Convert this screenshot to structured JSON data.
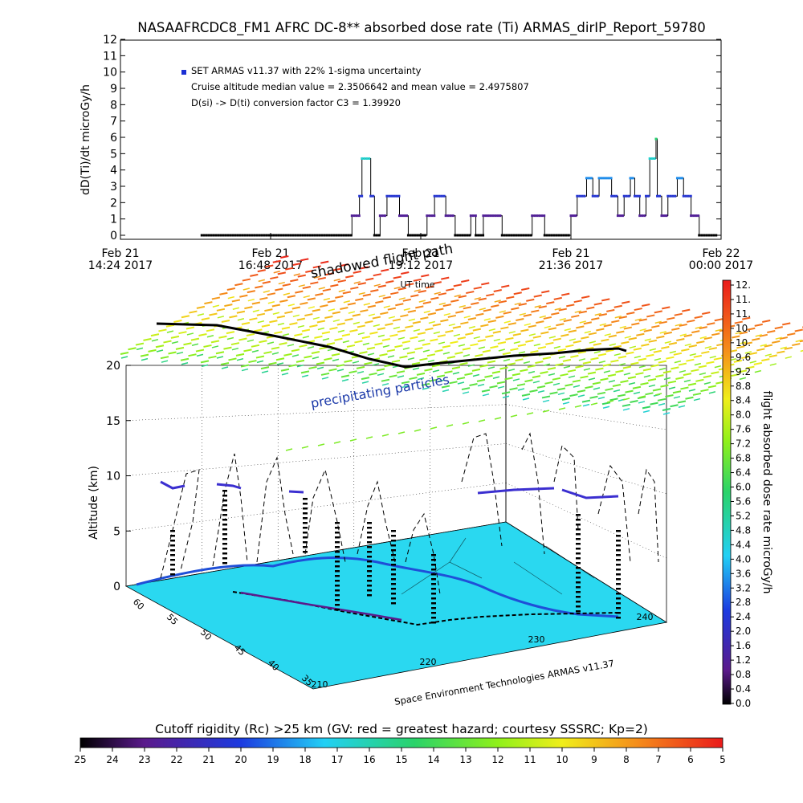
{
  "title": "NASAAFRCDC8_FM1 AFRC DC-8** absorbed dose rate (Ti) ARMAS_dirIP_Report_59780",
  "colors": {
    "background": "#ffffff",
    "foreground": "#000000"
  },
  "chart_data": [
    {
      "type": "scatter",
      "ylabel": "dD(Ti)/dt microGy/h",
      "ylim": [
        0,
        12
      ],
      "yticks": [
        "0",
        "1",
        "2",
        "3",
        "4",
        "5",
        "6",
        "7",
        "8",
        "9",
        "10",
        "11",
        "12"
      ],
      "xlabel": "UT time",
      "xlim_hours": [
        14.4,
        24.0
      ],
      "xticks": [
        {
          "date": "Feb 21",
          "time": "14:24 2017"
        },
        {
          "date": "Feb 21",
          "time": "16:48 2017"
        },
        {
          "date": "Feb 21",
          "time": "19:12 2017"
        },
        {
          "date": "Feb 21",
          "time": "21:36 2017"
        },
        {
          "date": "Feb 22",
          "time": "00:00 2017"
        }
      ],
      "legend": {
        "series": "SET ARMAS v11.37 with 22% 1-sigma uncertainty",
        "line2": "Cruise altitude median value = 2.3506642 and mean value = 2.4975807",
        "line3": "D(si) -> D(ti) conversion factor C3 = 1.39920",
        "placement": "top-left"
      },
      "segments": [
        {
          "x0": 15.7,
          "x1": 18.1,
          "y": 0.0
        },
        {
          "x0": 18.1,
          "x1": 18.22,
          "y": 1.2
        },
        {
          "x0": 18.22,
          "x1": 18.26,
          "y": 2.4
        },
        {
          "x0": 18.26,
          "x1": 18.4,
          "y": 4.7
        },
        {
          "x0": 18.4,
          "x1": 18.46,
          "y": 2.4
        },
        {
          "x0": 18.46,
          "x1": 18.55,
          "y": 0.0
        },
        {
          "x0": 18.55,
          "x1": 18.66,
          "y": 1.2
        },
        {
          "x0": 18.66,
          "x1": 18.86,
          "y": 2.4
        },
        {
          "x0": 18.86,
          "x1": 19.0,
          "y": 1.2
        },
        {
          "x0": 19.0,
          "x1": 19.3,
          "y": 0.0
        },
        {
          "x0": 19.3,
          "x1": 19.42,
          "y": 1.2
        },
        {
          "x0": 19.42,
          "x1": 19.6,
          "y": 2.4
        },
        {
          "x0": 19.6,
          "x1": 19.75,
          "y": 1.2
        },
        {
          "x0": 19.75,
          "x1": 20.0,
          "y": 0.0
        },
        {
          "x0": 20.0,
          "x1": 20.08,
          "y": 1.2
        },
        {
          "x0": 20.08,
          "x1": 20.2,
          "y": 0.0
        },
        {
          "x0": 20.2,
          "x1": 20.5,
          "y": 1.2
        },
        {
          "x0": 20.5,
          "x1": 20.98,
          "y": 0.0
        },
        {
          "x0": 20.98,
          "x1": 21.18,
          "y": 1.2
        },
        {
          "x0": 21.18,
          "x1": 21.6,
          "y": 0.0
        },
        {
          "x0": 21.6,
          "x1": 21.7,
          "y": 1.2
        },
        {
          "x0": 21.7,
          "x1": 21.85,
          "y": 2.4
        },
        {
          "x0": 21.85,
          "x1": 21.95,
          "y": 3.5
        },
        {
          "x0": 21.95,
          "x1": 22.05,
          "y": 2.4
        },
        {
          "x0": 22.05,
          "x1": 22.25,
          "y": 3.5
        },
        {
          "x0": 22.25,
          "x1": 22.35,
          "y": 2.4
        },
        {
          "x0": 22.35,
          "x1": 22.45,
          "y": 1.2
        },
        {
          "x0": 22.45,
          "x1": 22.55,
          "y": 2.4
        },
        {
          "x0": 22.55,
          "x1": 22.62,
          "y": 3.5
        },
        {
          "x0": 22.62,
          "x1": 22.7,
          "y": 2.4
        },
        {
          "x0": 22.7,
          "x1": 22.8,
          "y": 1.2
        },
        {
          "x0": 22.8,
          "x1": 22.86,
          "y": 2.4
        },
        {
          "x0": 22.86,
          "x1": 22.96,
          "y": 4.7
        },
        {
          "x0": 22.96,
          "x1": 22.98,
          "y": 5.9
        },
        {
          "x0": 22.98,
          "x1": 23.05,
          "y": 2.4
        },
        {
          "x0": 23.05,
          "x1": 23.15,
          "y": 1.2
        },
        {
          "x0": 23.15,
          "x1": 23.3,
          "y": 2.4
        },
        {
          "x0": 23.3,
          "x1": 23.4,
          "y": 3.5
        },
        {
          "x0": 23.4,
          "x1": 23.52,
          "y": 2.4
        },
        {
          "x0": 23.52,
          "x1": 23.65,
          "y": 1.2
        },
        {
          "x0": 23.65,
          "x1": 23.95,
          "y": 0.0
        }
      ]
    },
    {
      "type": "scatter",
      "subtype": "3d-flight-path",
      "zlabel": "Altitude (km)",
      "zticks": [
        "0",
        "5",
        "10",
        "15",
        "20"
      ],
      "zlim": [
        0,
        20
      ],
      "lat_ticks": [
        "60",
        "55",
        "50",
        "45",
        "40",
        "35"
      ],
      "lon_ticks": [
        "210",
        "220",
        "230",
        "240"
      ],
      "annotations": {
        "shadowed": "shadowed flight path",
        "ut_time": "UT time",
        "precip": "precipitating particles",
        "credit": "Space Environment Technologies ARMAS v11.37"
      },
      "flight_path": [
        {
          "lat": 60,
          "lon": 210,
          "alt": 0.0
        },
        {
          "lat": 58,
          "lon": 212,
          "alt": 8.0
        },
        {
          "lat": 57,
          "lon": 214,
          "alt": 11.0
        },
        {
          "lat": 55,
          "lon": 217,
          "alt": 10.5
        },
        {
          "lat": 52,
          "lon": 220,
          "alt": 11.0
        },
        {
          "lat": 48,
          "lon": 224,
          "alt": 10.7
        },
        {
          "lat": 45,
          "lon": 228,
          "alt": 11.0
        },
        {
          "lat": 42,
          "lon": 233,
          "alt": 10.5
        },
        {
          "lat": 40,
          "lon": 238,
          "alt": 10.0
        },
        {
          "lat": 38,
          "lon": 241,
          "alt": 0.5
        }
      ]
    },
    {
      "type": "colorbar",
      "title": "flight absorbed dose rate microGy/h",
      "ticks": [
        "0.0",
        "0.4",
        "0.8",
        "1.2",
        "1.6",
        "2.0",
        "2.4",
        "2.8",
        "3.2",
        "3.6",
        "4.0",
        "4.4",
        "4.8",
        "5.2",
        "5.6",
        "6.0",
        "6.4",
        "6.8",
        "7.2",
        "7.6",
        "8.0",
        "8.4",
        "8.8",
        "9.2",
        "9.6",
        "10.",
        "10.",
        "11.",
        "11.",
        "12."
      ],
      "range": [
        0,
        12
      ]
    },
    {
      "type": "colorbar",
      "title": "Cutoff rigidity (Rc) >25 km (GV: red = greatest hazard; courtesy SSSRC; Kp=2)",
      "ticks": [
        "25",
        "24",
        "23",
        "22",
        "21",
        "20",
        "19",
        "18",
        "17",
        "16",
        "15",
        "14",
        "13",
        "12",
        "11",
        "10",
        "9",
        "8",
        "7",
        "6",
        "5"
      ],
      "range": [
        25,
        5
      ]
    }
  ]
}
